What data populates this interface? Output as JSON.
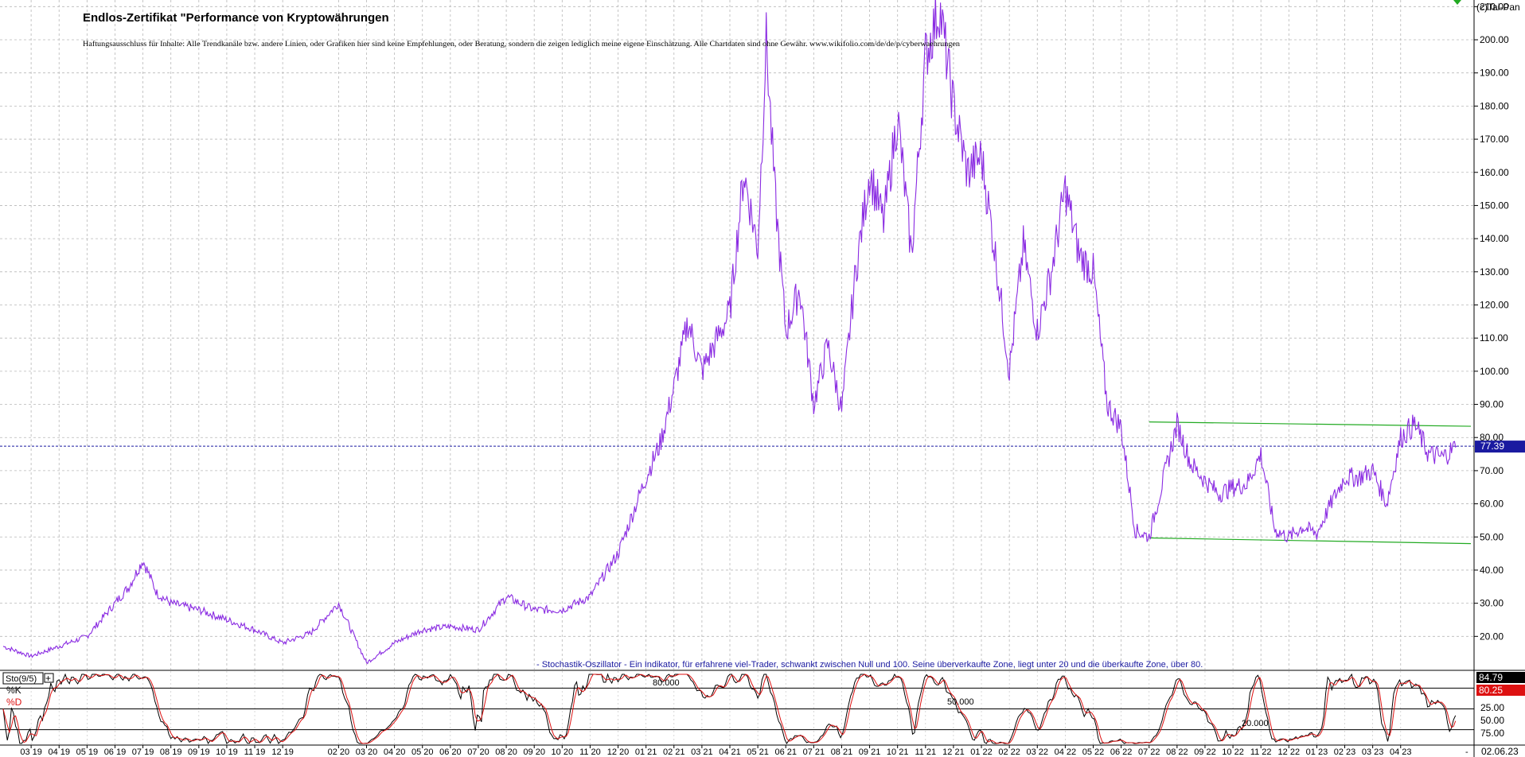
{
  "header": {
    "title": "Endlos-Zertifikat \"Performance von Kryptowährungen",
    "disclaimer": "Haftungsausschluss für Inhalte: Alle Trendkanäle bzw. andere Linien, oder Grafiken hier sind keine Empfehlungen, oder Beratung, sondern die zeigen lediglich meine eigene Einschätzung. Alle Chartdaten sind ohne Gewähr. www.wikifolio.com/de/de/p/cyberwaehrungen",
    "copyright": "(c)Tai-Pan"
  },
  "colors": {
    "price_line": "#8a2be2",
    "channel_lines": "#22aa22",
    "last_price_marker": "#1a1aa0",
    "stoch_k": "#000000",
    "stoch_d": "#dd1111",
    "grid": "#b8b8b8",
    "stoch_text": "#1a1aa0"
  },
  "chart_data": [
    {
      "type": "line",
      "title": "Endlos-Zertifikat \"Performance von Kryptowährungen",
      "ylim": [
        10,
        212
      ],
      "y_ticks": [
        20,
        30,
        40,
        50,
        60,
        70,
        80,
        90,
        100,
        110,
        120,
        130,
        140,
        150,
        160,
        170,
        180,
        190,
        200,
        210
      ],
      "y_tick_labels": [
        "20.00",
        "30.00",
        "40.00",
        "50.00",
        "60.00",
        "70.00",
        "80.00",
        "90.00",
        "100.00",
        "110.00",
        "120.00",
        "130.00",
        "140.00",
        "150.00",
        "160.00",
        "170.00",
        "180.00",
        "190.00",
        "200.00",
        "210.00"
      ],
      "x_tick_labels": [
        "03 19",
        "04 19",
        "05 19",
        "06 19",
        "07 19",
        "08 19",
        "09 19",
        "10 19",
        "11 19",
        "12 19",
        "02 20",
        "03 20",
        "04 20",
        "05 20",
        "06 20",
        "07 20",
        "08 20",
        "09 20",
        "10 20",
        "11 20",
        "12 20",
        "01 21",
        "02 21",
        "03 21",
        "04 21",
        "05 21",
        "06 21",
        "07 21",
        "08 21",
        "09 21",
        "10 21",
        "11 21",
        "12 21",
        "01 22",
        "02 22",
        "03 22",
        "04 22",
        "05 22",
        "06 22",
        "07 22",
        "08 22",
        "09 22",
        "10 22",
        "11 22",
        "12 22",
        "01 23",
        "02 23",
        "03 23",
        "04 23"
      ],
      "last_value": 77.39,
      "last_value_label": "77.39",
      "last_date_label": "02.06.23",
      "series": [
        {
          "points": [
            [
              "02 19",
              17
            ],
            [
              "03 19",
              14
            ],
            [
              "04 19",
              17
            ],
            [
              "05 19",
              20
            ],
            [
              "06 19",
              30
            ],
            [
              "06.5 19",
              35
            ],
            [
              "07 19",
              43
            ],
            [
              "07.5 19",
              33
            ],
            [
              "08 19",
              30
            ],
            [
              "09 19",
              28
            ],
            [
              "10 19",
              25
            ],
            [
              "11 19",
              22
            ],
            [
              "12 19",
              18
            ],
            [
              "01 20",
              21
            ],
            [
              "02 20",
              30
            ],
            [
              "03 20",
              12
            ],
            [
              "04 20",
              18
            ],
            [
              "05 20",
              22
            ],
            [
              "06 20",
              23
            ],
            [
              "07 20",
              22
            ],
            [
              "08 20",
              32
            ],
            [
              "09 20",
              28
            ],
            [
              "10 20",
              28
            ],
            [
              "11 20",
              32
            ],
            [
              "12 20",
              45
            ],
            [
              "01 21",
              68
            ],
            [
              "01.5 21",
              78
            ],
            [
              "02 21",
              95
            ],
            [
              "02.5 21",
              115
            ],
            [
              "03 21",
              100
            ],
            [
              "04 21",
              118
            ],
            [
              "04.5 21",
              160
            ],
            [
              "05 21",
              137
            ],
            [
              "05.3 21",
              200
            ],
            [
              "05.6 21",
              155
            ],
            [
              "06 21",
              112
            ],
            [
              "06.5 21",
              125
            ],
            [
              "07 21",
              90
            ],
            [
              "07.5 21",
              108
            ],
            [
              "08 21",
              88
            ],
            [
              "08.5 21",
              130
            ],
            [
              "09 21",
              160
            ],
            [
              "09.5 21",
              145
            ],
            [
              "10 21",
              177
            ],
            [
              "10.5 21",
              135
            ],
            [
              "11 21",
              195
            ],
            [
              "11.5 21",
              210
            ],
            [
              "12 21",
              180
            ],
            [
              "12.5 21",
              160
            ],
            [
              "01 22",
              165
            ],
            [
              "01.5 22",
              135
            ],
            [
              "02 22",
              100
            ],
            [
              "02.5 22",
              138
            ],
            [
              "03 22",
              112
            ],
            [
              "03.5 22",
              130
            ],
            [
              "04 22",
              155
            ],
            [
              "04.5 22",
              135
            ],
            [
              "05 22",
              130
            ],
            [
              "05.5 22",
              90
            ],
            [
              "06 22",
              83
            ],
            [
              "06.5 22",
              52
            ],
            [
              "07 22",
              50
            ],
            [
              "07.5 22",
              67
            ],
            [
              "08 22",
              84
            ],
            [
              "08.5 22",
              72
            ],
            [
              "09 22",
              67
            ],
            [
              "09.5 22",
              63
            ],
            [
              "10 22",
              65
            ],
            [
              "10.5 22",
              66
            ],
            [
              "11 22",
              75
            ],
            [
              "11.5 22",
              52
            ],
            [
              "12 22",
              50
            ],
            [
              "12.5 22",
              53
            ],
            [
              "01 23",
              51
            ],
            [
              "01.5 23",
              60
            ],
            [
              "02 23",
              68
            ],
            [
              "02.5 23",
              68
            ],
            [
              "03 23",
              70
            ],
            [
              "03.5 23",
              60
            ],
            [
              "04 23",
              80
            ],
            [
              "04.5 23",
              84
            ],
            [
              "05 23",
              75
            ],
            [
              "05.5 23",
              74
            ],
            [
              "06 23",
              77.39
            ]
          ]
        }
      ],
      "channel": {
        "upper": {
          "start": [
            "07 22",
            84.7
          ],
          "end": [
            "06 23",
            83.4
          ]
        },
        "lower": {
          "start": [
            "07 22",
            49.7
          ],
          "end": [
            "06 23",
            48.0
          ]
        }
      }
    },
    {
      "type": "line",
      "title": "- Stochastik-Oszillator - Ein Indikator, für erfahrene viel-Trader, schwankt zwischen Null und 100. Seine überverkaufte Zone, liegt unter 20 und die überkaufte Zone, über 80.",
      "indicator_label": "Sto(9/5)",
      "ylim": [
        0,
        100
      ],
      "levels": [
        20,
        50,
        80
      ],
      "level_labels": [
        "20.000",
        "50.000",
        "80.000"
      ],
      "y_tick_labels": [
        "25.00",
        "50.00",
        "75.00"
      ],
      "series": [
        {
          "name": "%K",
          "last_value": 84.79,
          "last_label": "84.79"
        },
        {
          "name": "%D",
          "last_value": 80.25,
          "last_label": "80.25"
        }
      ]
    }
  ]
}
